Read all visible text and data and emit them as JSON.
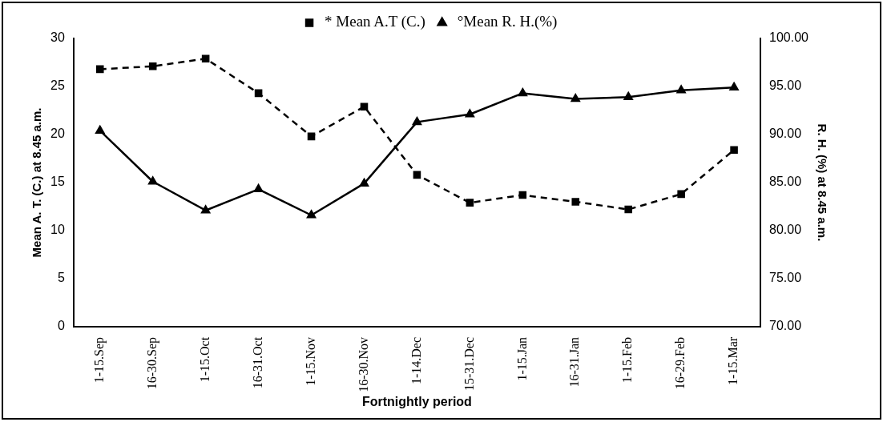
{
  "chart_data": {
    "type": "line",
    "xlabel": "Fortnightly period",
    "ylabel": "Mean A. T. (C.) at 8.45 a.m.",
    "y2label": "R. H. (%) at 8.45 a.m.",
    "categories": [
      "1-15.Sep",
      "16-30.Sep",
      "1-15.Oct",
      "16-31.Oct",
      "1-15.Nov",
      "16-30.Nov",
      "1-14.Dec",
      "15-31.Dec",
      "1-15.Jan",
      "16-31.Jan",
      "1-15.Feb",
      "16-29.Feb",
      "1-15.Mar"
    ],
    "series": [
      {
        "name": "* Mean A.T (C.)",
        "color": "#000000",
        "marker": "square",
        "line_style": "dashed",
        "values": [
          26.8,
          27.1,
          27.9,
          24.3,
          19.8,
          22.9,
          15.8,
          12.9,
          13.7,
          13.0,
          12.2,
          13.8,
          18.4
        ]
      },
      {
        "name": "°Mean R. H.(%)",
        "color": "#000000",
        "marker": "triangle",
        "line_style": "solid",
        "axis": "y2",
        "values": [
          90.4,
          85.1,
          82.1,
          84.3,
          81.6,
          84.9,
          91.3,
          92.1,
          94.3,
          93.7,
          93.9,
          94.6,
          94.9
        ]
      }
    ],
    "ylim": [
      0,
      30
    ],
    "yticks": [
      0,
      5,
      10,
      15,
      20,
      25,
      30
    ],
    "y2lim": [
      70,
      100
    ],
    "y2ticks": [
      {
        "value": 70,
        "label": "70.00"
      },
      {
        "value": 75,
        "label": "75.00"
      },
      {
        "value": 80,
        "label": "80.00"
      },
      {
        "value": 85,
        "label": "85.00"
      },
      {
        "value": 90,
        "label": "90.00"
      },
      {
        "value": 95,
        "label": "95.00"
      },
      {
        "value": 100,
        "label": "100.00"
      }
    ],
    "grid": false,
    "legend": "top"
  }
}
